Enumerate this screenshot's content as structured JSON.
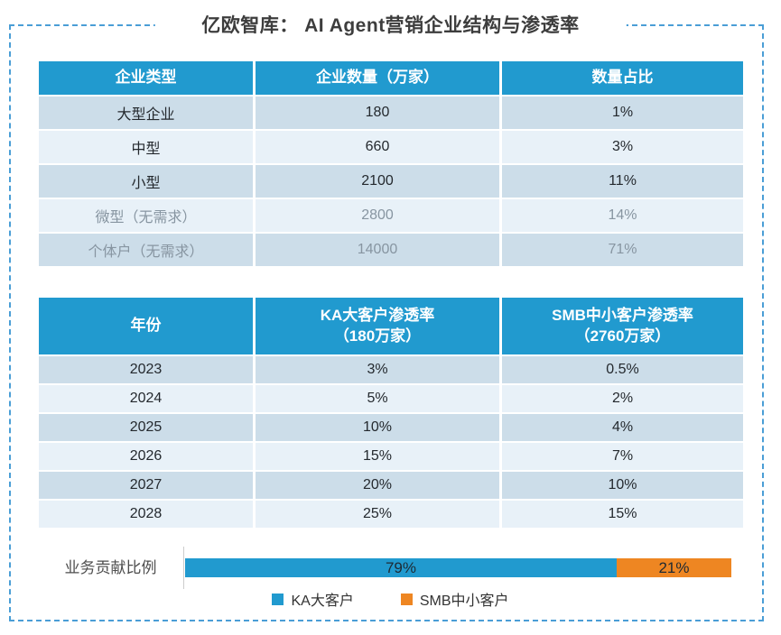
{
  "title": "亿欧智库： AI Agent营销企业结构与渗透率",
  "colors": {
    "header_blue": "#219acf",
    "row_dark": "#ccdde9",
    "row_light": "#e8f1f8",
    "bar_blue": "#219acf",
    "bar_orange": "#ee8622",
    "frame_border": "#4a9ed6"
  },
  "structure_table": {
    "headers": [
      "企业类型",
      "企业数量（万家）",
      "数量占比"
    ],
    "rows": [
      {
        "type": "大型企业",
        "count": "180",
        "share": "1%"
      },
      {
        "type": "中型",
        "count": "660",
        "share": "3%"
      },
      {
        "type": "小型",
        "count": "2100",
        "share": "11%"
      },
      {
        "type": "微型（无需求）",
        "count": "2800",
        "share": "14%"
      },
      {
        "type": "个体户（无需求）",
        "count": "14000",
        "share": "71%"
      }
    ]
  },
  "penetration_table": {
    "header_year": "年份",
    "header_ka": {
      "line1": "KA大客户渗透率",
      "line2": "（180万家）"
    },
    "header_smb": {
      "line1": "SMB中小客户渗透率",
      "line2": "（2760万家）"
    },
    "rows": [
      {
        "year": "2023",
        "ka": "3%",
        "smb": "0.5%"
      },
      {
        "year": "2024",
        "ka": "5%",
        "smb": "2%"
      },
      {
        "year": "2025",
        "ka": "10%",
        "smb": "4%"
      },
      {
        "year": "2026",
        "ka": "15%",
        "smb": "7%"
      },
      {
        "year": "2027",
        "ka": "20%",
        "smb": "10%"
      },
      {
        "year": "2028",
        "ka": "25%",
        "smb": "15%"
      }
    ]
  },
  "contribution": {
    "label": "业务贡献比例",
    "segments": [
      {
        "name": "KA大客户",
        "value": 79,
        "label": "79%",
        "color": "#219acf"
      },
      {
        "name": "SMB中小客户",
        "value": 21,
        "label": "21%",
        "color": "#ee8622"
      }
    ]
  },
  "legend": {
    "items": [
      {
        "label": "KA大客户",
        "color": "#219acf"
      },
      {
        "label": "SMB中小客户",
        "color": "#ee8622"
      }
    ]
  },
  "chart_data": [
    {
      "type": "table",
      "title": "AI Agent营销企业结构",
      "columns": [
        "企业类型",
        "企业数量（万家）",
        "数量占比"
      ],
      "rows": [
        [
          "大型企业",
          180,
          "1%"
        ],
        [
          "中型",
          660,
          "3%"
        ],
        [
          "小型",
          2100,
          "11%"
        ],
        [
          "微型（无需求）",
          2800,
          "14%"
        ],
        [
          "个体户（无需求）",
          14000,
          "71%"
        ]
      ]
    },
    {
      "type": "table",
      "title": "AI Agent营销渗透率预测",
      "columns": [
        "年份",
        "KA大客户渗透率（180万家）",
        "SMB中小客户渗透率（2760万家）"
      ],
      "rows": [
        [
          2023,
          "3%",
          "0.5%"
        ],
        [
          2024,
          "5%",
          "2%"
        ],
        [
          2025,
          "10%",
          "4%"
        ],
        [
          2026,
          "15%",
          "7%"
        ],
        [
          2027,
          "20%",
          "10%"
        ],
        [
          2028,
          "25%",
          "15%"
        ]
      ]
    },
    {
      "type": "bar",
      "orientation": "horizontal",
      "stacked": true,
      "categories": [
        "业务贡献比例"
      ],
      "series": [
        {
          "name": "KA大客户",
          "values": [
            79
          ]
        },
        {
          "name": "SMB中小客户",
          "values": [
            21
          ]
        }
      ],
      "xlim": [
        0,
        100
      ],
      "legend_position": "bottom",
      "grid": false
    }
  ]
}
